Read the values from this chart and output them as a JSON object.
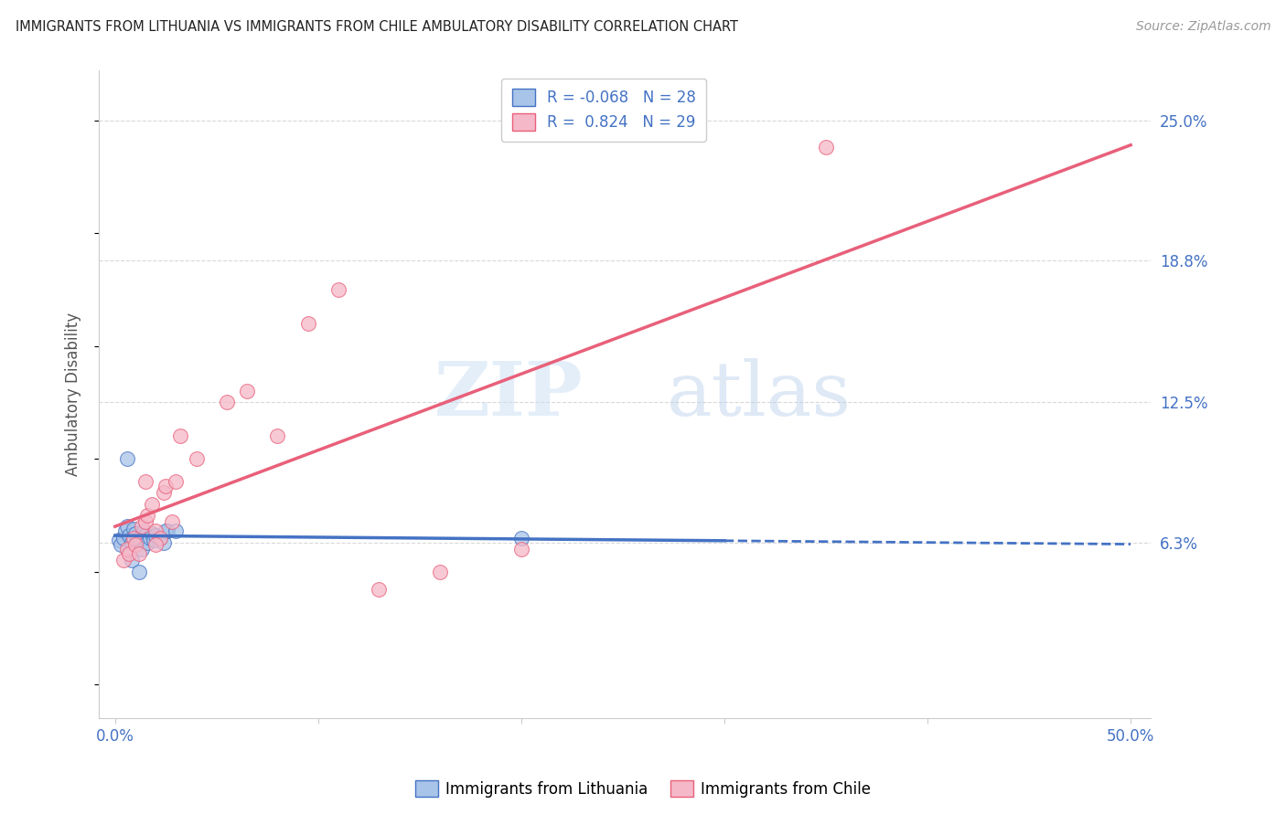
{
  "title": "IMMIGRANTS FROM LITHUANIA VS IMMIGRANTS FROM CHILE AMBULATORY DISABILITY CORRELATION CHART",
  "source": "Source: ZipAtlas.com",
  "ylabel": "Ambulatory Disability",
  "ytick_positions": [
    0.063,
    0.125,
    0.188,
    0.25
  ],
  "ytick_labels": [
    "6.3%",
    "12.5%",
    "18.8%",
    "25.0%"
  ],
  "color_lithuania": "#a8c4e8",
  "color_chile": "#f5b8c8",
  "color_line_lithuania": "#4472c4",
  "color_line_chile": "#e8607a",
  "color_axis_labels": "#4472c4",
  "lithuania_x": [
    0.002,
    0.003,
    0.004,
    0.005,
    0.006,
    0.007,
    0.008,
    0.009,
    0.01,
    0.011,
    0.012,
    0.013,
    0.014,
    0.015,
    0.016,
    0.017,
    0.018,
    0.019,
    0.02,
    0.022,
    0.024,
    0.026,
    0.006,
    0.008,
    0.012,
    0.025,
    0.03,
    0.2
  ],
  "lithuania_y": [
    0.064,
    0.062,
    0.065,
    0.068,
    0.07,
    0.066,
    0.063,
    0.069,
    0.067,
    0.064,
    0.065,
    0.06,
    0.068,
    0.066,
    0.063,
    0.065,
    0.067,
    0.064,
    0.066,
    0.065,
    0.063,
    0.068,
    0.1,
    0.055,
    0.05,
    0.068,
    0.068,
    0.065
  ],
  "chile_x": [
    0.004,
    0.006,
    0.007,
    0.009,
    0.01,
    0.012,
    0.013,
    0.015,
    0.016,
    0.018,
    0.02,
    0.022,
    0.024,
    0.025,
    0.028,
    0.03,
    0.032,
    0.04,
    0.055,
    0.065,
    0.08,
    0.095,
    0.11,
    0.13,
    0.16,
    0.2,
    0.015,
    0.02,
    0.35
  ],
  "chile_y": [
    0.055,
    0.06,
    0.058,
    0.065,
    0.062,
    0.058,
    0.07,
    0.072,
    0.075,
    0.08,
    0.068,
    0.065,
    0.085,
    0.088,
    0.072,
    0.09,
    0.11,
    0.1,
    0.125,
    0.13,
    0.11,
    0.16,
    0.175,
    0.042,
    0.05,
    0.06,
    0.09,
    0.062,
    0.238
  ],
  "watermark_zip": "ZIP",
  "watermark_atlas": "atlas",
  "background_color": "#ffffff",
  "grid_color": "#d8d8d8"
}
